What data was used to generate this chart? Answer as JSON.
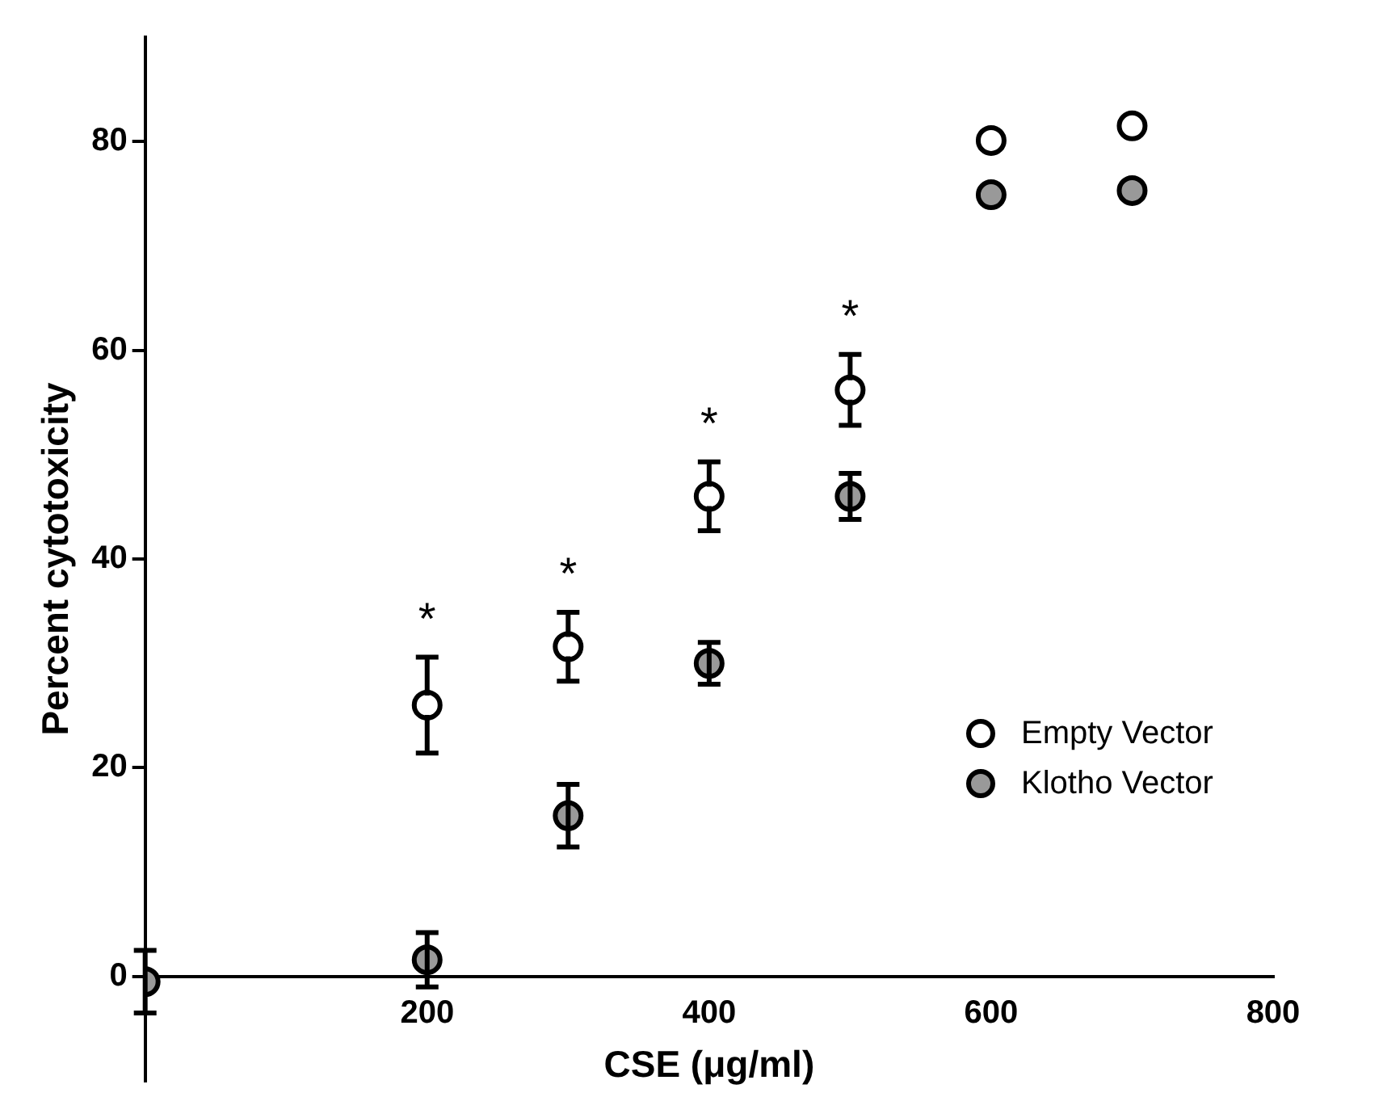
{
  "chart_data": {
    "type": "scatter",
    "xlabel": "CSE (μg/ml)",
    "ylabel": "Percent cytotoxicity",
    "x": [
      0,
      200,
      300,
      400,
      500,
      600,
      700
    ],
    "series": [
      {
        "name": "Empty Vector",
        "color": "#ffffff",
        "values": [
          null,
          26,
          31.6,
          46,
          56.2,
          80.1,
          81.5
        ],
        "errors": [
          null,
          4.6,
          3.3,
          3.3,
          3.4,
          null,
          null
        ]
      },
      {
        "name": "Klotho Vector",
        "color": "#999999",
        "values": [
          -0.5,
          1.6,
          15.4,
          30,
          46,
          74.9,
          75.3
        ],
        "errors": [
          3,
          2.6,
          3,
          2,
          2.2,
          null,
          null
        ]
      }
    ],
    "xlim": [
      0,
      800
    ],
    "xticks": [
      200,
      400,
      600,
      800
    ],
    "ylim": [
      -10,
      90
    ],
    "yticks": [
      0,
      20,
      40,
      60,
      80
    ],
    "marker": "circle",
    "legend": "bottom right",
    "annotations": [
      {
        "text": "*",
        "x": 200,
        "y": 30.6
      },
      {
        "text": "*",
        "x": 300,
        "y": 34.9
      },
      {
        "text": "*",
        "x": 400,
        "y": 49.3
      },
      {
        "text": "*",
        "x": 500,
        "y": 59.6
      }
    ]
  }
}
